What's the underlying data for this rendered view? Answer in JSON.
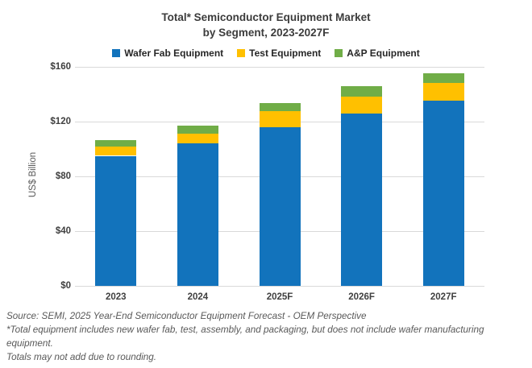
{
  "title": {
    "line1": "Total* Semiconductor Equipment Market",
    "line2": "by Segment, 2023-2027F"
  },
  "legend": [
    {
      "label": "Wafer Fab Equipment",
      "color": "#1273bc"
    },
    {
      "label": "Test Equipment",
      "color": "#ffc000"
    },
    {
      "label": "A&P Equipment",
      "color": "#70ad47"
    }
  ],
  "y_axis_title": "US$ Billion",
  "footer": {
    "line1": "Source: SEMI, 2025 Year-End Semiconductor Equipment Forecast - OEM Perspective",
    "line2": "*Total equipment includes new wafer fab, test, assembly, and packaging, but does not include wafer manufacturing equipment.",
    "line3": "Totals may not add due to rounding."
  },
  "chart_data": {
    "type": "bar",
    "stacked": true,
    "title": "Total* Semiconductor Equipment Market by Segment, 2023-2027F",
    "categories": [
      "2023",
      "2024",
      "2025F",
      "2026F",
      "2027F"
    ],
    "series": [
      {
        "name": "Wafer Fab Equipment",
        "color": "#1273bc",
        "values": [
          95,
          104,
          116,
          126,
          135.5
        ]
      },
      {
        "name": "Test Equipment",
        "color": "#ffc000",
        "values": [
          6.5,
          7,
          11.5,
          12.5,
          13
        ]
      },
      {
        "name": "A&P Equipment",
        "color": "#70ad47",
        "values": [
          5,
          6,
          6,
          7.5,
          7
        ]
      }
    ],
    "totals_approx": [
      106.5,
      117,
      133.5,
      146,
      155.5
    ],
    "xlabel": "",
    "ylabel": "US$ Billion",
    "ylim": [
      0,
      160
    ],
    "yticks": [
      0,
      40,
      80,
      120,
      160
    ],
    "ytick_labels": [
      "$0",
      "$40",
      "$80",
      "$120",
      "$160"
    ],
    "grid": "horizontal",
    "legend_position": "top",
    "colors": {
      "gridline": "#d9d9d9",
      "tick_text": "#404040",
      "footer_text": "#595959",
      "title_text": "#3c3c3c"
    }
  }
}
